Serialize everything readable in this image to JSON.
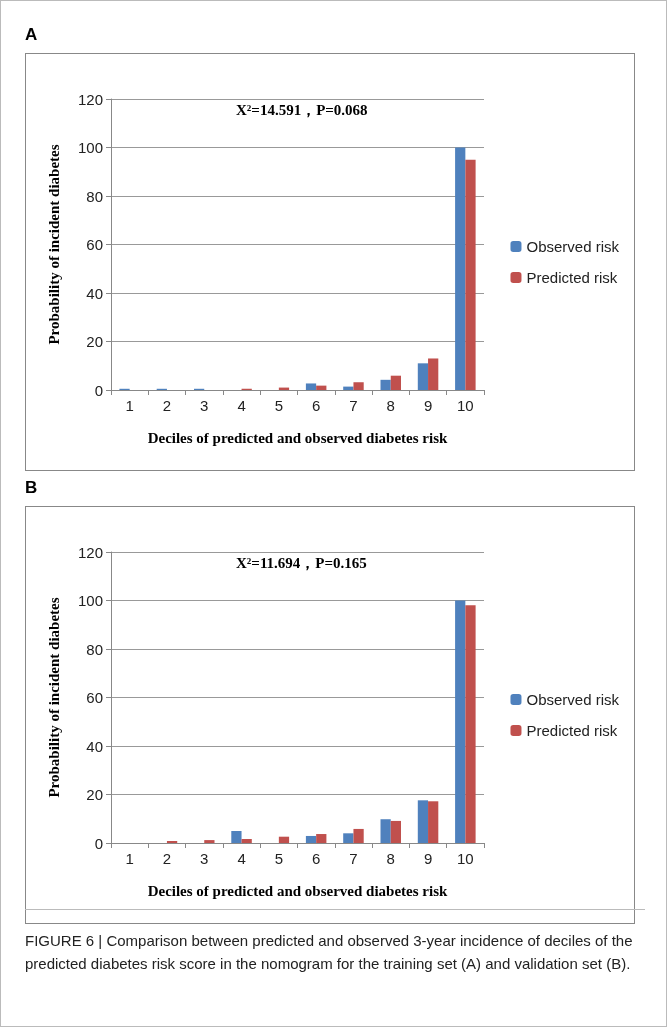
{
  "chart_data": [
    {
      "type": "bar",
      "title": "A",
      "xlabel": "Deciles of predicted and observed diabetes risk",
      "ylabel": "Probability of incident diabetes",
      "categories": [
        "1",
        "2",
        "3",
        "4",
        "5",
        "6",
        "7",
        "8",
        "9",
        "10"
      ],
      "series": [
        {
          "name": "Observed risk",
          "color": "#4f81bd",
          "values": [
            0.5,
            0.5,
            0.5,
            0,
            0,
            2.7,
            1.4,
            4.2,
            11,
            100
          ]
        },
        {
          "name": "Predicted risk",
          "color": "#c0504d",
          "values": [
            0,
            0,
            0,
            0.5,
            1,
            1.8,
            3.2,
            5.9,
            13,
            95
          ]
        }
      ],
      "ylim": [
        0,
        120
      ],
      "yticks": [
        0,
        20,
        40,
        60,
        80,
        100,
        120
      ],
      "grid": "y",
      "legend": "right",
      "annotations": [
        "X²=14.591，P=0.068"
      ]
    },
    {
      "type": "bar",
      "title": "B",
      "xlabel": "Deciles of predicted and observed diabetes risk",
      "ylabel": "Probability of incident diabetes",
      "categories": [
        "1",
        "2",
        "3",
        "4",
        "5",
        "6",
        "7",
        "8",
        "9",
        "10"
      ],
      "series": [
        {
          "name": "Observed risk",
          "color": "#4f81bd",
          "values": [
            0,
            0,
            0,
            4.9,
            0,
            2.9,
            4,
            9.8,
            17.6,
            100
          ]
        },
        {
          "name": "Predicted risk",
          "color": "#c0504d",
          "values": [
            0,
            0.8,
            1.2,
            1.7,
            2.6,
            3.7,
            5.8,
            9.1,
            17.2,
            98
          ]
        }
      ],
      "ylim": [
        0,
        120
      ],
      "yticks": [
        0,
        20,
        40,
        60,
        80,
        100,
        120
      ],
      "grid": "y",
      "legend": "right",
      "annotations": [
        "X²=11.694，P=0.165",
        "FIGURE 6 | Comparison between predicted and observed 3-year incidence of deciles of the predicted diabetes risk score in the nomogram for the training set (A) and validation set (B)."
      ]
    }
  ]
}
